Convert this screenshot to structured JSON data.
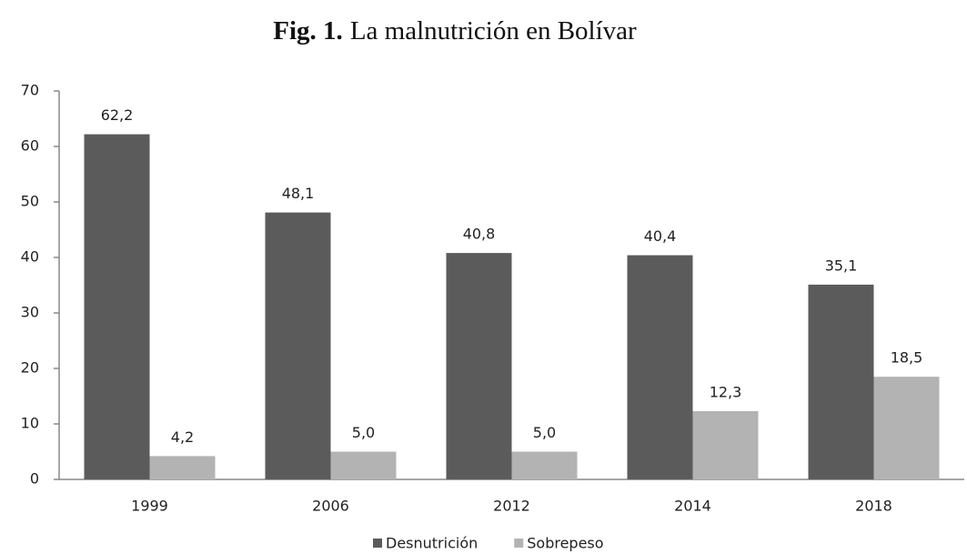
{
  "chart_data": {
    "type": "bar",
    "figure_label": "Fig. 1.",
    "title": "La malnutrición en Bolívar",
    "categories": [
      "1999",
      "2006",
      "2012",
      "2014",
      "2018"
    ],
    "series": [
      {
        "name": "Desnutrición",
        "color": "#5b5b5b",
        "values": [
          62.2,
          48.1,
          40.8,
          40.4,
          35.1
        ],
        "value_labels": [
          "62,2",
          "48,1",
          "40,8",
          "40,4",
          "35,1"
        ]
      },
      {
        "name": "Sobrepeso",
        "color": "#b3b3b3",
        "values": [
          4.2,
          5.0,
          5.0,
          12.3,
          18.5
        ],
        "value_labels": [
          "4,2",
          "5,0",
          "5,0",
          "12,3",
          "18,5"
        ]
      }
    ],
    "ylim": [
      0,
      70
    ],
    "yticks": [
      0,
      10,
      20,
      30,
      40,
      50,
      60,
      70
    ],
    "grid": false,
    "legend": "bottom"
  }
}
